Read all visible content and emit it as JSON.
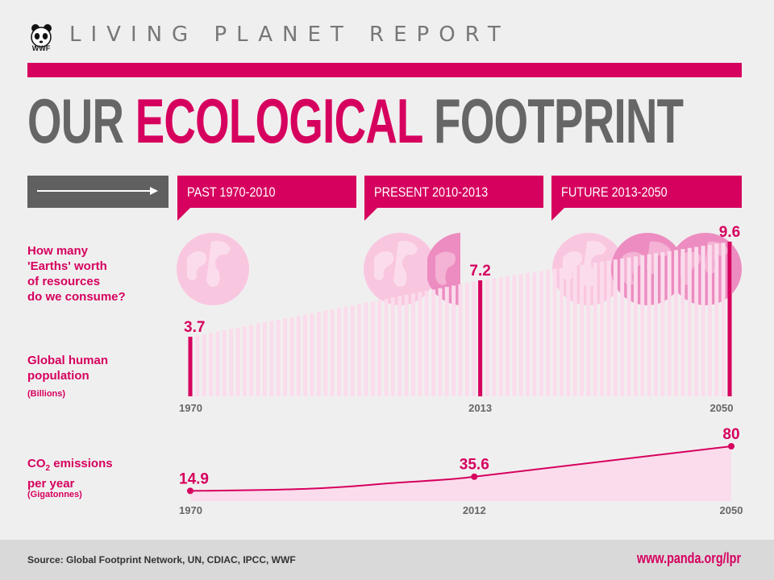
{
  "header": {
    "logo_text": "WWF",
    "report_title": "LIVING PLANET REPORT",
    "title_part1": "OUR",
    "title_accent": "ECOLOGICAL",
    "title_part2": "FOOTPRINT"
  },
  "periods": [
    {
      "label": "PAST 1970-2010"
    },
    {
      "label": "PRESENT 2010-2013"
    },
    {
      "label": "FUTURE 2013-2050"
    }
  ],
  "rows": {
    "earths": {
      "label_lines": [
        "How many",
        "'Earths' worth",
        "of resources",
        "do we consume?"
      ]
    },
    "population": {
      "label_lines": [
        "Global human",
        "population"
      ],
      "unit": "(Billions)"
    },
    "co2": {
      "label_main": "CO",
      "label_sub": "2",
      "label_rest": " emissions",
      "label_line2": "per year",
      "unit": "(Gigatonnes)"
    }
  },
  "colors": {
    "accent": "#d6005e",
    "light_pink": "#fbdcec",
    "globe_light": "#f9c6e0",
    "globe_mid": "#ec8cc0",
    "grey": "#606060"
  },
  "chart_data": [
    {
      "type": "pictogram",
      "name": "earths",
      "groups": [
        {
          "period": "PAST 1970-2010",
          "earths": 1
        },
        {
          "period": "PRESENT 2010-2013",
          "earths": 1.5
        },
        {
          "period": "FUTURE 2013-2050",
          "earths": 3
        }
      ]
    },
    {
      "type": "bar",
      "name": "population",
      "x_range": [
        1970,
        2050
      ],
      "points": [
        {
          "x": 1970,
          "value": 3.7,
          "label": "3.7",
          "year_label": "1970"
        },
        {
          "x": 2013,
          "value": 7.2,
          "label": "7.2",
          "year_label": "2013"
        },
        {
          "x": 2050,
          "value": 9.6,
          "label": "9.6",
          "year_label": "2050"
        }
      ]
    },
    {
      "type": "area",
      "name": "co2",
      "x_range": [
        1970,
        2050
      ],
      "points": [
        {
          "x": 1970,
          "value": 14.9,
          "label": "14.9",
          "year_label": "1970"
        },
        {
          "x": 2012,
          "value": 35.6,
          "label": "35.6",
          "year_label": "2012"
        },
        {
          "x": 2050,
          "value": 80,
          "label": "80",
          "year_label": "2050"
        }
      ]
    }
  ],
  "footer": {
    "source": "Source: Global Footprint Network, UN, CDIAC, IPCC, WWF",
    "url": "www.panda.org/lpr"
  }
}
